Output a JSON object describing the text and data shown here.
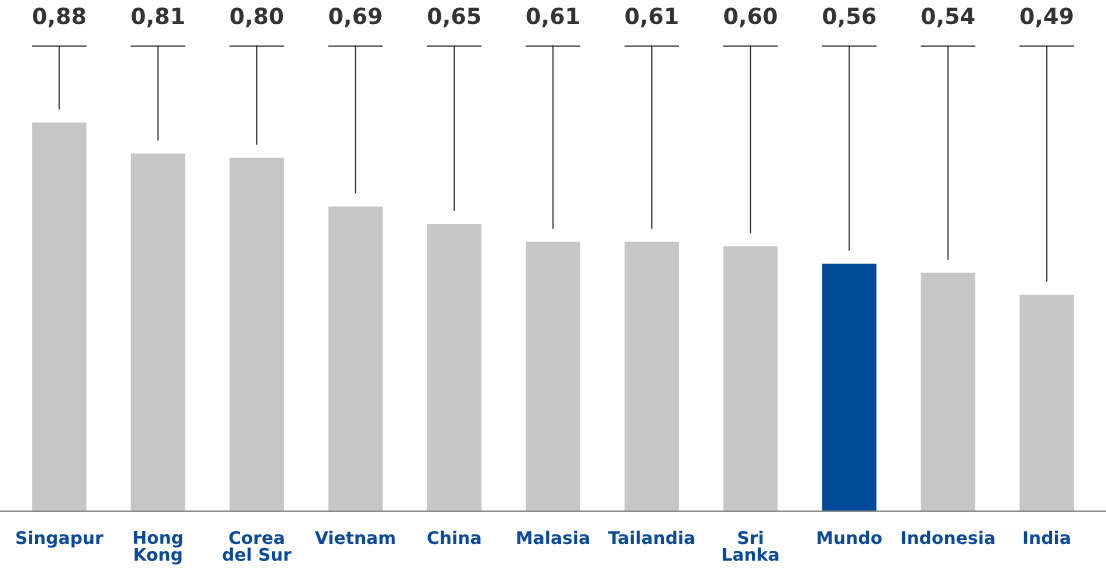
{
  "chart_data": {
    "type": "bar",
    "categories": [
      "Singapur",
      "Hong Kong",
      "Corea del Sur",
      "Vietnam",
      "China",
      "Malasia",
      "Tailandia",
      "Sri Lanka",
      "Mundo",
      "Indonesia",
      "India"
    ],
    "values": [
      0.88,
      0.81,
      0.8,
      0.69,
      0.65,
      0.61,
      0.61,
      0.6,
      0.56,
      0.54,
      0.49
    ],
    "colors": [
      "#c6c6c6",
      "#c6c6c6",
      "#c6c6c6",
      "#c6c6c6",
      "#c6c6c6",
      "#c6c6c6",
      "#c6c6c6",
      "#c6c6c6",
      "#004a98",
      "#c6c6c6",
      "#c6c6c6"
    ],
    "value_labels": [
      "0,88",
      "0,81",
      "0,80",
      "0,69",
      "0,65",
      "0,61",
      "0,61",
      "0,60",
      "0,56",
      "0,54",
      "0,49"
    ],
    "grid": false,
    "legend": false
  }
}
